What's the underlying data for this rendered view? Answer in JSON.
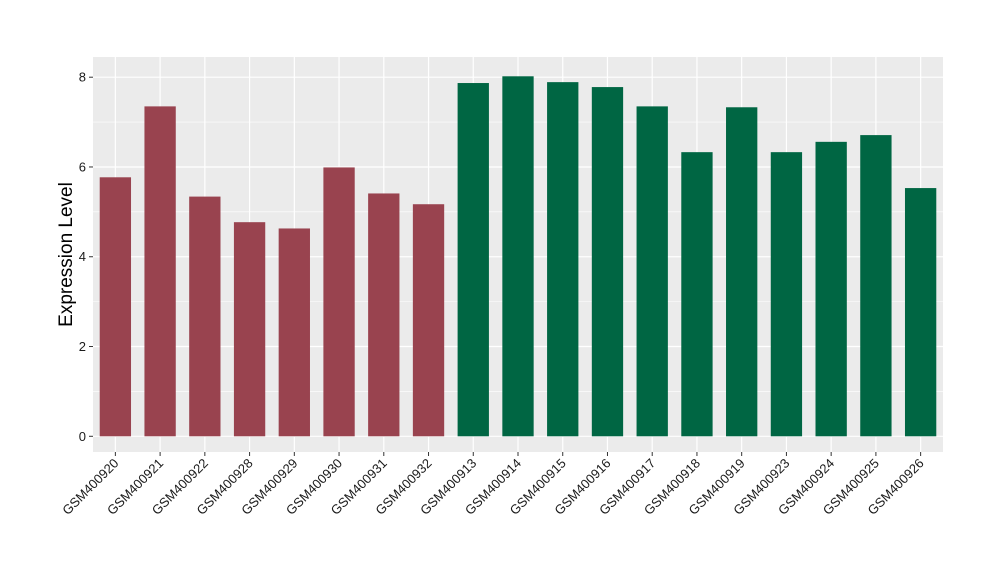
{
  "chart_data": {
    "type": "bar",
    "title": "",
    "xlabel": "",
    "ylabel": "Expression Level",
    "ylim": [
      -0.35,
      8.45
    ],
    "yticks": [
      0,
      2,
      4,
      6,
      8
    ],
    "grid": true,
    "legend": "none",
    "panel_color": "#ebebeb",
    "grid_color": "#ffffff",
    "categories": [
      "GSM400920",
      "GSM400921",
      "GSM400922",
      "GSM400928",
      "GSM400929",
      "GSM400930",
      "GSM400931",
      "GSM400932",
      "GSM400913",
      "GSM400914",
      "GSM400915",
      "GSM400916",
      "GSM400917",
      "GSM400918",
      "GSM400919",
      "GSM400923",
      "GSM400924",
      "GSM400925",
      "GSM400926"
    ],
    "values": [
      5.77,
      7.35,
      5.34,
      4.77,
      4.63,
      5.99,
      5.41,
      5.17,
      7.87,
      8.02,
      7.89,
      7.78,
      7.35,
      6.33,
      7.33,
      6.33,
      6.56,
      6.71,
      5.53
    ],
    "bar_colors": [
      "#99434f",
      "#99434f",
      "#99434f",
      "#99434f",
      "#99434f",
      "#99434f",
      "#99434f",
      "#99434f",
      "#006643",
      "#006643",
      "#006643",
      "#006643",
      "#006643",
      "#006643",
      "#006643",
      "#006643",
      "#006643",
      "#006643",
      "#006643"
    ]
  }
}
